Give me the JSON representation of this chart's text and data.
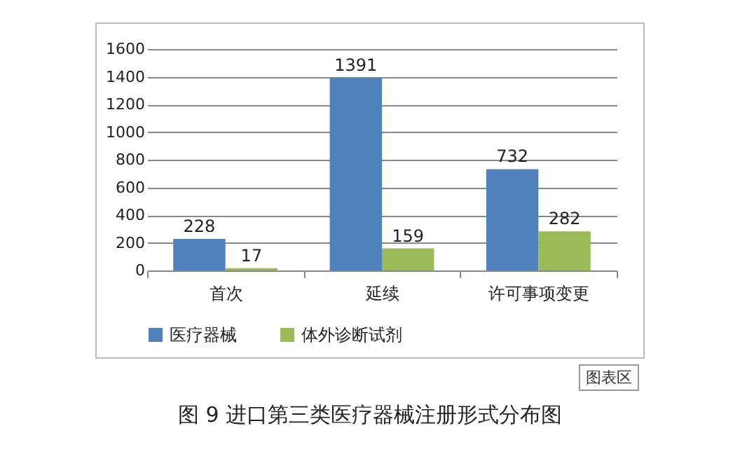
{
  "chart_data": {
    "type": "bar",
    "title": "图 9 进口第三类医疗器械注册形式分布图",
    "categories": [
      "首次",
      "延续",
      "许可事项变更"
    ],
    "series": [
      {
        "name": "医疗器械",
        "color": "#4f81bd",
        "values": [
          228,
          1391,
          732
        ]
      },
      {
        "name": "体外诊断试剂",
        "color": "#9bbb59",
        "values": [
          17,
          159,
          282
        ]
      }
    ],
    "ylim": [
      0,
      1600
    ],
    "yticks": [
      0,
      200,
      400,
      600,
      800,
      1000,
      1200,
      1400,
      1600
    ],
    "grid": "y",
    "legend": "bottom",
    "data_labels": true,
    "annotations": [
      "图表区"
    ]
  }
}
